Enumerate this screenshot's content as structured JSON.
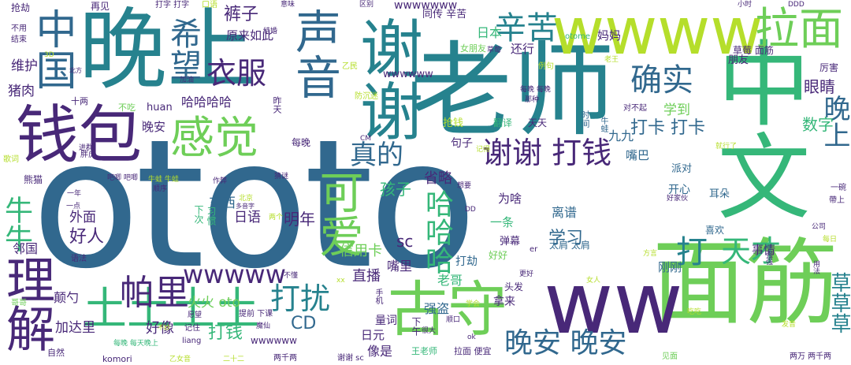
{
  "palette": {
    "dark_purple": "#482878",
    "blue": "#31688e",
    "teal": "#26828e",
    "green": "#35b779",
    "lime": "#6ece58",
    "yellow": "#b5de2b"
  },
  "words": [
    {
      "text": "ototo",
      "color": "#31688e"
    },
    {
      "text": "老师",
      "color": "#26828e"
    },
    {
      "text": "晚上",
      "color": "#26828e"
    },
    {
      "text": "面筋",
      "color": "#6ece58"
    },
    {
      "text": "ww",
      "color": "#482878"
    },
    {
      "text": "中文",
      "color": "#35b779"
    },
    {
      "text": "wwww",
      "color": "#b5de2b"
    },
    {
      "text": "谢谢",
      "color": "#26828e"
    },
    {
      "text": "钱包",
      "color": "#482878"
    },
    {
      "text": "感觉",
      "color": "#6ece58"
    },
    {
      "text": "古守",
      "color": "#6ece58"
    },
    {
      "text": "可爱",
      "color": "#6ece58"
    },
    {
      "text": "理解",
      "color": "#482878"
    },
    {
      "text": "土土土土",
      "color": "#35b779"
    },
    {
      "text": "中国",
      "color": "#31688e"
    },
    {
      "text": "声音",
      "color": "#31688e"
    },
    {
      "text": "拉面",
      "color": "#6ece58"
    },
    {
      "text": "确实",
      "color": "#31688e"
    },
    {
      "text": "衣服",
      "color": "#482878"
    },
    {
      "text": "希望",
      "color": "#31688e"
    },
    {
      "text": "辛苦",
      "color": "#26828e"
    },
    {
      "text": "真的",
      "color": "#31688e"
    },
    {
      "text": "谢谢 打钱",
      "color": "#482878"
    },
    {
      "text": "帕里",
      "color": "#482878"
    },
    {
      "text": "打扰",
      "color": "#26828e"
    },
    {
      "text": "晚安 晚安",
      "color": "#31688e"
    },
    {
      "text": "天才",
      "color": "#35b779"
    },
    {
      "text": "哈哈哈",
      "color": "#35b779"
    },
    {
      "text": "牛牛",
      "color": "#35b779"
    },
    {
      "text": "wwwww",
      "color": "#482878"
    },
    {
      "text": "打卡 打卡",
      "color": "#31688e"
    },
    {
      "text": "晚上",
      "color": "#31688e"
    },
    {
      "text": "草草草",
      "color": "#26828e"
    },
    {
      "text": "眼睛",
      "color": "#482878"
    },
    {
      "text": "打",
      "color": "#26828e"
    },
    {
      "text": "裤子",
      "color": "#482878"
    },
    {
      "text": "原来如此",
      "color": "#482878"
    },
    {
      "text": "哈哈哈哈",
      "color": "#482878"
    },
    {
      "text": "日本",
      "color": "#35b779"
    },
    {
      "text": "省略",
      "color": "#482878"
    },
    {
      "text": "孩子",
      "color": "#35b779"
    },
    {
      "text": "明年",
      "color": "#482878"
    },
    {
      "text": "好人",
      "color": "#482878"
    },
    {
      "text": "信用卡",
      "color": "#6ece58"
    },
    {
      "text": "学习",
      "color": "#31688e"
    },
    {
      "text": "直播",
      "color": "#482878"
    },
    {
      "text": "CD",
      "color": "#31688e"
    },
    {
      "text": "打钱",
      "color": "#35b779"
    },
    {
      "text": "好像",
      "color": "#482878"
    },
    {
      "text": "火火 oto",
      "color": "#6ece58"
    },
    {
      "text": "强盗",
      "color": "#31688e"
    },
    {
      "text": "数字",
      "color": "#35b779"
    },
    {
      "text": "九九",
      "color": "#31688e"
    },
    {
      "text": "学到",
      "color": "#6ece58"
    },
    {
      "text": "东西",
      "color": "#31688e"
    },
    {
      "text": "日语",
      "color": "#482878"
    },
    {
      "text": "外面",
      "color": "#482878"
    },
    {
      "text": "维护",
      "color": "#482878"
    },
    {
      "text": "猪肉",
      "color": "#482878"
    },
    {
      "text": "晚安",
      "color": "#482878"
    },
    {
      "text": "嘴巴",
      "color": "#31688e"
    },
    {
      "text": "老哥",
      "color": "#35b779"
    },
    {
      "text": "嘴里",
      "color": "#482878"
    },
    {
      "text": "离谱",
      "color": "#31688e"
    },
    {
      "text": "事情",
      "color": "#482878"
    },
    {
      "text": "刚刚",
      "color": "#31688e"
    },
    {
      "text": "拿来",
      "color": "#482878"
    },
    {
      "text": "加达里",
      "color": "#482878"
    },
    {
      "text": "颠勺",
      "color": "#482878"
    },
    {
      "text": "邻国",
      "color": "#482878"
    },
    {
      "text": "日元",
      "color": "#482878"
    },
    {
      "text": "量词",
      "color": "#482878"
    },
    {
      "text": "像是",
      "color": "#482878"
    },
    {
      "text": "sc",
      "color": "#482878"
    },
    {
      "text": "一条",
      "color": "#35b779"
    },
    {
      "text": "为啥",
      "color": "#482878"
    },
    {
      "text": "开心",
      "color": "#31688e"
    },
    {
      "text": "弹幕",
      "color": "#482878"
    },
    {
      "text": "太肩 太肩",
      "color": "#31688e"
    },
    {
      "text": "打劫",
      "color": "#31688e"
    },
    {
      "text": "头发",
      "color": "#482878"
    },
    {
      "text": "喜欢",
      "color": "#31688e"
    },
    {
      "text": "派对",
      "color": "#31688e"
    },
    {
      "text": "好好",
      "color": "#6ece58"
    },
    {
      "text": "耳朵",
      "color": "#31688e"
    },
    {
      "text": "句子",
      "color": "#482878"
    },
    {
      "text": "抢钱",
      "color": "#b5de2b"
    },
    {
      "text": "翻译",
      "color": "#35b779"
    },
    {
      "text": "天天",
      "color": "#482878"
    },
    {
      "text": "每晚",
      "color": "#482878"
    },
    {
      "text": "妈妈",
      "color": "#482878"
    },
    {
      "text": "朋友",
      "color": "#482878"
    },
    {
      "text": "还行",
      "color": "#482878"
    },
    {
      "text": "同传 辛苦",
      "color": "#482878"
    },
    {
      "text": "草莓 面筋",
      "color": "#482878"
    },
    {
      "text": "厉害",
      "color": "#482878"
    },
    {
      "text": "wwwwwww",
      "color": "#482878"
    },
    {
      "text": "wwwwww",
      "color": "#482878"
    },
    {
      "text": "wwwwww",
      "color": "#482878"
    },
    {
      "text": "女朋友",
      "color": "#6ece58"
    },
    {
      "text": "抢劫",
      "color": "#482878"
    },
    {
      "text": "不用",
      "color": "#482878"
    },
    {
      "text": "结束",
      "color": "#482878"
    },
    {
      "text": "再见",
      "color": "#482878"
    },
    {
      "text": "打字 打字",
      "color": "#482878"
    },
    {
      "text": "口语",
      "color": "#b5de2b"
    },
    {
      "text": "意味",
      "color": "#482878"
    },
    {
      "text": "区别",
      "color": "#482878"
    },
    {
      "text": "小时",
      "color": "#482878"
    },
    {
      "text": "DDD",
      "color": "#482878"
    },
    {
      "text": "otome",
      "color": "#35b779"
    },
    {
      "text": "huan",
      "color": "#482878"
    },
    {
      "text": "不吃",
      "color": "#6ece58"
    },
    {
      "text": "十两",
      "color": "#482878"
    },
    {
      "text": "晚安",
      "color": "#482878"
    },
    {
      "text": "昨天",
      "color": "#482878"
    },
    {
      "text": "时间",
      "color": "#31688e"
    },
    {
      "text": "对不起",
      "color": "#482878"
    },
    {
      "text": "牛蛙",
      "color": "#31688e"
    },
    {
      "text": "王老师",
      "color": "#35b779"
    },
    {
      "text": "拉面 便宜",
      "color": "#482878"
    },
    {
      "text": "谢谢 sc",
      "color": "#482878"
    },
    {
      "text": "两千两",
      "color": "#482878"
    },
    {
      "text": "两万 两千两",
      "color": "#482878"
    },
    {
      "text": "见面",
      "color": "#6ece58"
    },
    {
      "text": "komori",
      "color": "#482878"
    },
    {
      "text": "自然",
      "color": "#482878"
    },
    {
      "text": "二十二",
      "color": "#b5de2b"
    },
    {
      "text": "乙女音",
      "color": "#b5de2b"
    },
    {
      "text": "liang",
      "color": "#482878"
    },
    {
      "text": "记住",
      "color": "#482878"
    },
    {
      "text": "每晚 每天晚上",
      "color": "#35b779"
    },
    {
      "text": "下午",
      "color": "#482878"
    },
    {
      "text": "很大",
      "color": "#482878"
    },
    {
      "text": "学会",
      "color": "#b5de2b"
    },
    {
      "text": "发音",
      "color": "#b5de2b"
    },
    {
      "text": "提前 下课",
      "color": "#482878"
    },
    {
      "text": "魔仙",
      "color": "#482878"
    },
    {
      "text": "手机",
      "color": "#482878"
    },
    {
      "text": "下次",
      "color": "#35b779"
    },
    {
      "text": "习惯",
      "color": "#35b779"
    },
    {
      "text": "一年",
      "color": "#482878"
    },
    {
      "text": "一点",
      "color": "#482878"
    },
    {
      "text": "语法",
      "color": "#482878"
    },
    {
      "text": "哥哥",
      "color": "#6ece58"
    },
    {
      "text": "熊猫",
      "color": "#482878"
    },
    {
      "text": "胖虎",
      "color": "#482878"
    },
    {
      "text": "进群",
      "color": "#482878"
    },
    {
      "text": "吧唧 吧唧",
      "color": "#482878"
    },
    {
      "text": "牛蛙 牛蛙",
      "color": "#b5de2b"
    },
    {
      "text": "歌词",
      "color": "#b5de2b"
    },
    {
      "text": "北方",
      "color": "#482878"
    },
    {
      "text": "加油",
      "color": "#482878"
    },
    {
      "text": "乙民",
      "color": "#b5de2b"
    },
    {
      "text": "防沉迷",
      "color": "#b5de2b"
    },
    {
      "text": "每晚 每晚",
      "color": "#482878"
    },
    {
      "text": "那种",
      "color": "#482878"
    },
    {
      "text": "例句",
      "color": "#b5de2b"
    },
    {
      "text": "草莓",
      "color": "#482878"
    },
    {
      "text": "老王",
      "color": "#b5de2b"
    },
    {
      "text": "帶上",
      "color": "#482878"
    },
    {
      "text": "一碗",
      "color": "#482878"
    },
    {
      "text": "好家伙",
      "color": "#482878"
    },
    {
      "text": "想要",
      "color": "#482878"
    },
    {
      "text": "猜谜",
      "color": "#482878"
    },
    {
      "text": "顺序",
      "color": "#482878"
    },
    {
      "text": "作弊",
      "color": "#482878"
    },
    {
      "text": "北京",
      "color": "#b5de2b"
    },
    {
      "text": "两个",
      "color": "#b5de2b"
    },
    {
      "text": "多音字",
      "color": "#482878"
    },
    {
      "text": "DD",
      "color": "#482878"
    },
    {
      "text": "er",
      "color": "#482878"
    },
    {
      "text": "更好",
      "color": "#482878"
    },
    {
      "text": "不懂",
      "color": "#482878"
    },
    {
      "text": "女人",
      "color": "#b5de2b"
    },
    {
      "text": "方言",
      "color": "#b5de2b"
    },
    {
      "text": "用法",
      "color": "#482878"
    },
    {
      "text": "公司",
      "color": "#482878"
    },
    {
      "text": "记得",
      "color": "#b5de2b"
    },
    {
      "text": "结婚",
      "color": "#482878"
    },
    {
      "text": "CM",
      "color": "#482878"
    },
    {
      "text": "xx",
      "color": "#b5de2b"
    },
    {
      "text": "3D",
      "color": "#b5de2b"
    },
    {
      "text": "不妙",
      "color": "#b5de2b"
    },
    {
      "text": "愿望",
      "color": "#482878"
    },
    {
      "text": "顺口",
      "color": "#482878"
    },
    {
      "text": "ok",
      "color": "#482878"
    },
    {
      "text": "每日",
      "color": "#b5de2b"
    },
    {
      "text": "就行了",
      "color": "#b5de2b"
    },
    {
      "text": "强强",
      "color": "#482878"
    },
    {
      "text": "吃吃",
      "color": "#b5de2b"
    }
  ]
}
